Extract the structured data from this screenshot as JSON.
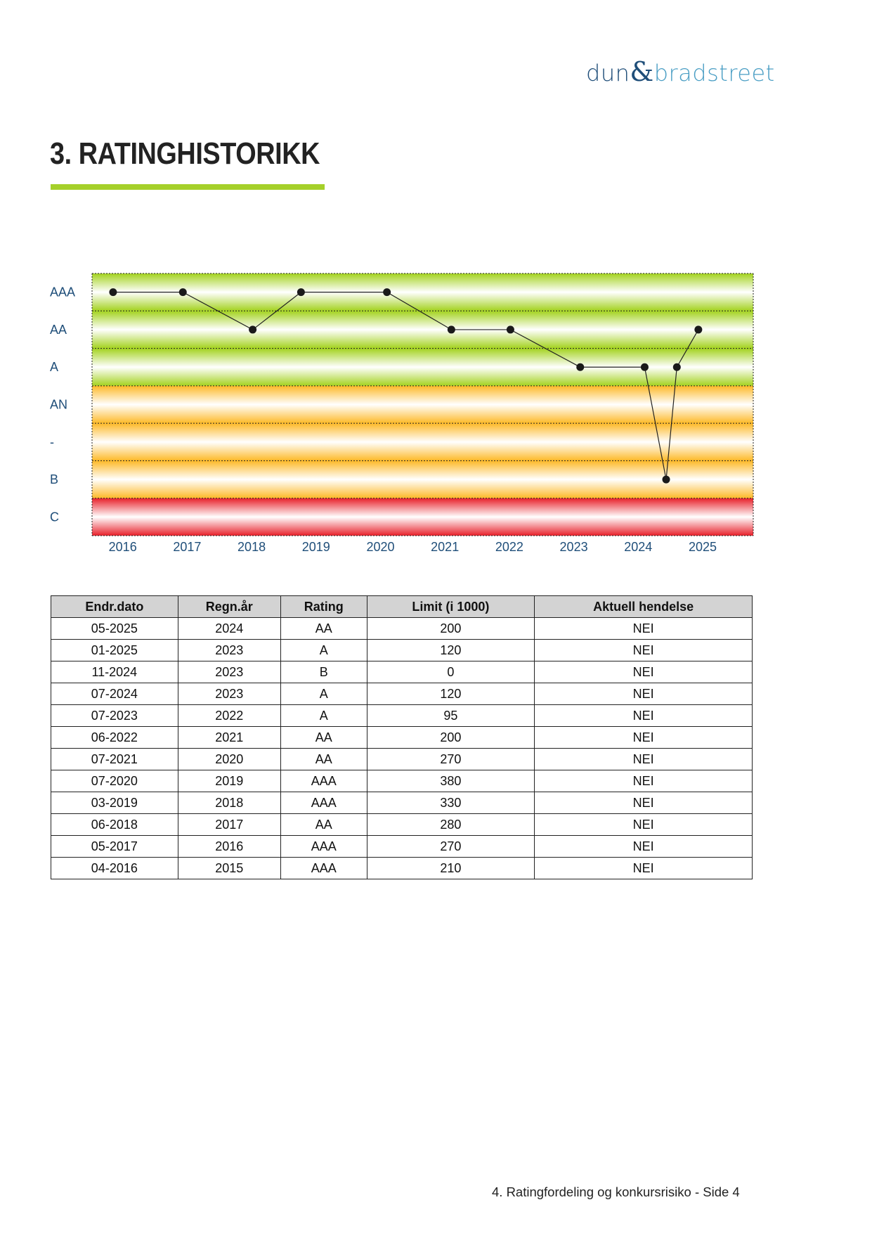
{
  "header": {
    "logo_text_1": "dun",
    "logo_amp": "&",
    "logo_text_2": "bradstreet"
  },
  "page_title": "3. RATINGHISTORIKK",
  "colors": {
    "accent_rule": "#a5d02a",
    "green_band": "#a3d21e",
    "orange_band": "#fdb927",
    "red_band": "#e8202a",
    "axis_label": "#1f4e79",
    "logo_dark": "#1f4e79",
    "logo_light": "#4a9ec4"
  },
  "chart_data": {
    "type": "line",
    "y_categories": [
      "AAA",
      "AA",
      "A",
      "AN",
      "-",
      "B",
      "C"
    ],
    "band_colors": {
      "AAA": "green",
      "AA": "green",
      "A": "green",
      "AN": "orange",
      "-": "orange",
      "B": "orange",
      "C": "red"
    },
    "x_tick_labels": [
      "2016",
      "2017",
      "2018",
      "2019",
      "2020",
      "2021",
      "2022",
      "2023",
      "2024",
      "2025"
    ],
    "grid": "dotted horizontal",
    "points": [
      {
        "date": "04-2016",
        "rating": "AAA"
      },
      {
        "date": "05-2017",
        "rating": "AAA"
      },
      {
        "date": "06-2018",
        "rating": "AA"
      },
      {
        "date": "03-2019",
        "rating": "AAA"
      },
      {
        "date": "07-2020",
        "rating": "AAA"
      },
      {
        "date": "07-2021",
        "rating": "AA"
      },
      {
        "date": "06-2022",
        "rating": "AA"
      },
      {
        "date": "07-2023",
        "rating": "A"
      },
      {
        "date": "07-2024",
        "rating": "A"
      },
      {
        "date": "11-2024",
        "rating": "B"
      },
      {
        "date": "01-2025",
        "rating": "A"
      },
      {
        "date": "05-2025",
        "rating": "AA"
      }
    ]
  },
  "table": {
    "headers": [
      "Endr.dato",
      "Regn.år",
      "Rating",
      "Limit (i 1000)",
      "Aktuell hendelse"
    ],
    "rows": [
      [
        "05-2025",
        "2024",
        "AA",
        "200",
        "NEI"
      ],
      [
        "01-2025",
        "2023",
        "A",
        "120",
        "NEI"
      ],
      [
        "11-2024",
        "2023",
        "B",
        "0",
        "NEI"
      ],
      [
        "07-2024",
        "2023",
        "A",
        "120",
        "NEI"
      ],
      [
        "07-2023",
        "2022",
        "A",
        "95",
        "NEI"
      ],
      [
        "06-2022",
        "2021",
        "AA",
        "200",
        "NEI"
      ],
      [
        "07-2021",
        "2020",
        "AA",
        "270",
        "NEI"
      ],
      [
        "07-2020",
        "2019",
        "AAA",
        "380",
        "NEI"
      ],
      [
        "03-2019",
        "2018",
        "AAA",
        "330",
        "NEI"
      ],
      [
        "06-2018",
        "2017",
        "AA",
        "280",
        "NEI"
      ],
      [
        "05-2017",
        "2016",
        "AAA",
        "270",
        "NEI"
      ],
      [
        "04-2016",
        "2015",
        "AAA",
        "210",
        "NEI"
      ]
    ]
  },
  "footer": "4. Ratingfordeling og konkursrisiko - Side 4"
}
